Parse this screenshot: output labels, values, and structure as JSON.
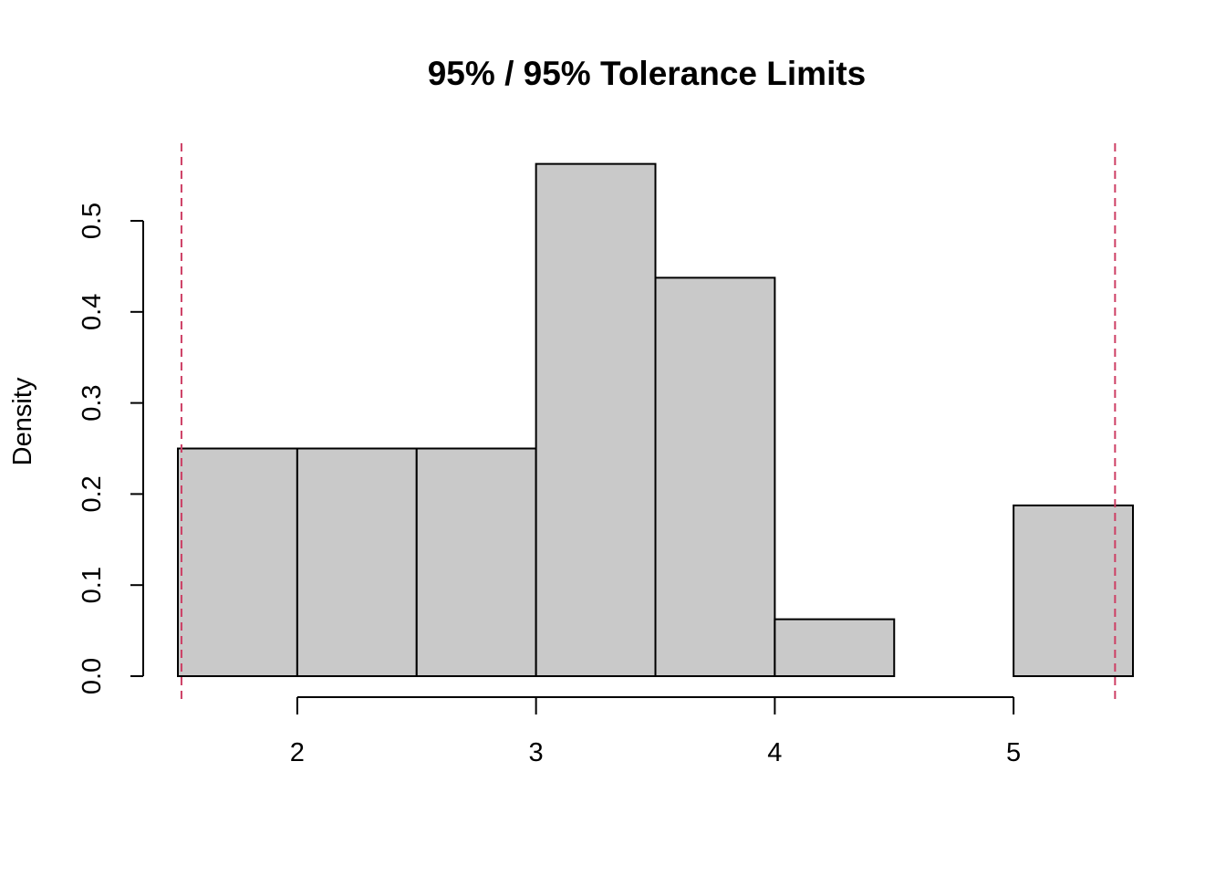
{
  "chart_data": {
    "type": "histogram",
    "title": "95% / 95% Tolerance Limits",
    "xlabel": "",
    "ylabel": "Density",
    "bins": [
      {
        "start": 1.5,
        "end": 2.0,
        "density": 0.25
      },
      {
        "start": 2.0,
        "end": 2.5,
        "density": 0.25
      },
      {
        "start": 2.5,
        "end": 3.0,
        "density": 0.25
      },
      {
        "start": 3.0,
        "end": 3.5,
        "density": 0.5625
      },
      {
        "start": 3.5,
        "end": 4.0,
        "density": 0.4375
      },
      {
        "start": 4.0,
        "end": 4.5,
        "density": 0.0625
      },
      {
        "start": 4.5,
        "end": 5.0,
        "density": 0.0
      },
      {
        "start": 5.0,
        "end": 5.5,
        "density": 0.1875
      }
    ],
    "xlim": [
      1.5,
      5.5
    ],
    "ylim": [
      0,
      0.6
    ],
    "x_ticks": [
      2,
      3,
      4,
      5
    ],
    "x_tick_labels": [
      "2",
      "3",
      "4",
      "5"
    ],
    "y_ticks": [
      0.0,
      0.1,
      0.2,
      0.3,
      0.4,
      0.5
    ],
    "y_tick_labels": [
      "0.0",
      "0.1",
      "0.2",
      "0.3",
      "0.4",
      "0.5"
    ],
    "tolerance_limits": {
      "lower": 1.515,
      "upper": 5.425
    },
    "colors": {
      "bar_fill": "#c9c9c9",
      "bar_edge": "#000000",
      "limit_line": "#cd3e64"
    }
  }
}
